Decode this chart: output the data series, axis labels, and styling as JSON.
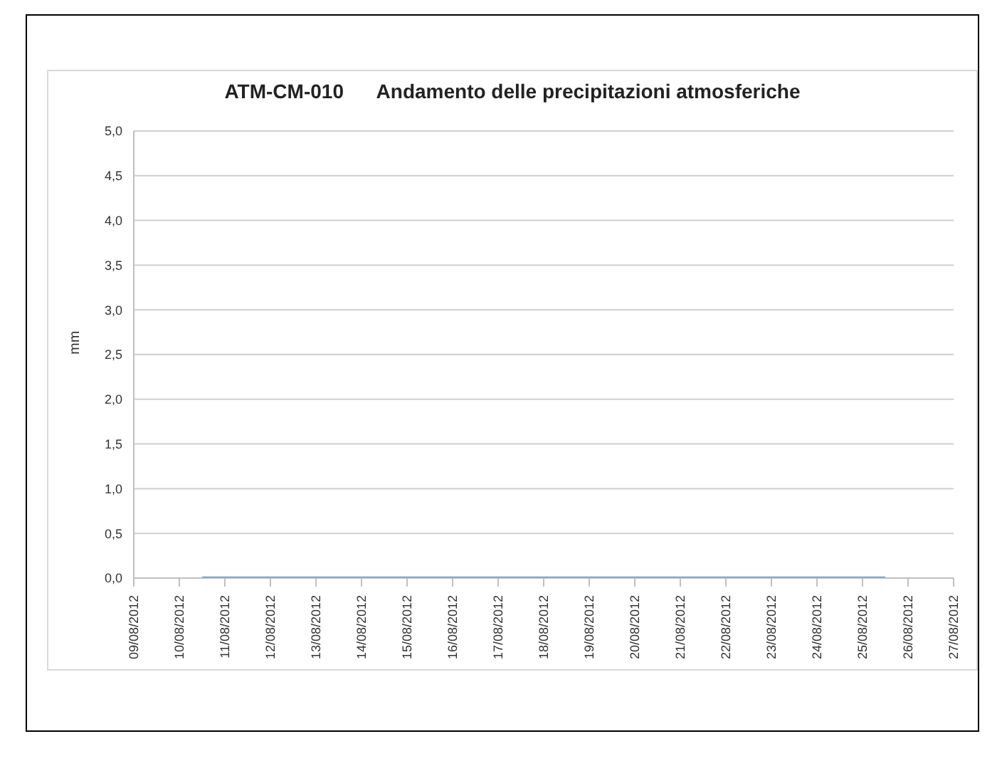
{
  "chart_data": {
    "type": "line",
    "title": "ATM-CM-010      Andamento delle precipitazioni atmosferiche",
    "ylabel": "mm",
    "x": [
      "2012-08-10T12:00",
      "2012-08-11T12:00",
      "2012-08-12T12:00",
      "2012-08-13T12:00",
      "2012-08-14T12:00",
      "2012-08-15T12:00",
      "2012-08-16T12:00",
      "2012-08-17T12:00",
      "2012-08-18T12:00",
      "2012-08-19T12:00",
      "2012-08-20T12:00",
      "2012-08-21T12:00",
      "2012-08-22T12:00",
      "2012-08-23T12:00",
      "2012-08-24T12:00",
      "2012-08-25T12:00"
    ],
    "series": [
      {
        "color": "#4f81bd",
        "values": [
          0,
          0,
          0,
          0,
          0,
          0,
          0,
          0,
          0,
          0,
          0,
          0,
          0,
          0,
          0,
          0
        ]
      }
    ],
    "xlim": [
      "2012-08-09",
      "2012-08-27"
    ],
    "xticks": [
      {
        "value": "2012-08-09",
        "label": "09/08/2012"
      },
      {
        "value": "2012-08-10",
        "label": "10/08/2012"
      },
      {
        "value": "2012-08-11",
        "label": "11/08/2012"
      },
      {
        "value": "2012-08-12",
        "label": "12/08/2012"
      },
      {
        "value": "2012-08-13",
        "label": "13/08/2012"
      },
      {
        "value": "2012-08-14",
        "label": "14/08/2012"
      },
      {
        "value": "2012-08-15",
        "label": "15/08/2012"
      },
      {
        "value": "2012-08-16",
        "label": "16/08/2012"
      },
      {
        "value": "2012-08-17",
        "label": "17/08/2012"
      },
      {
        "value": "2012-08-18",
        "label": "18/08/2012"
      },
      {
        "value": "2012-08-19",
        "label": "19/08/2012"
      },
      {
        "value": "2012-08-20",
        "label": "20/08/2012"
      },
      {
        "value": "2012-08-21",
        "label": "21/08/2012"
      },
      {
        "value": "2012-08-22",
        "label": "22/08/2012"
      },
      {
        "value": "2012-08-23",
        "label": "23/08/2012"
      },
      {
        "value": "2012-08-24",
        "label": "24/08/2012"
      },
      {
        "value": "2012-08-25",
        "label": "25/08/2012"
      },
      {
        "value": "2012-08-26",
        "label": "26/08/2012"
      },
      {
        "value": "2012-08-27",
        "label": "27/08/2012"
      }
    ],
    "ylim": [
      0,
      5
    ],
    "yticks": [
      {
        "value": 0,
        "label": "0,0"
      },
      {
        "value": 0.5,
        "label": "0,5"
      },
      {
        "value": 1,
        "label": "1,0"
      },
      {
        "value": 1.5,
        "label": "1,5"
      },
      {
        "value": 2,
        "label": "2,0"
      },
      {
        "value": 2.5,
        "label": "2,5"
      },
      {
        "value": 3,
        "label": "3,0"
      },
      {
        "value": 3.5,
        "label": "3,5"
      },
      {
        "value": 4,
        "label": "4,0"
      },
      {
        "value": 4.5,
        "label": "4,5"
      },
      {
        "value": 5,
        "label": "5,0"
      }
    ],
    "grid": "y",
    "legend": false,
    "marker": "none",
    "line_style": "solid"
  }
}
